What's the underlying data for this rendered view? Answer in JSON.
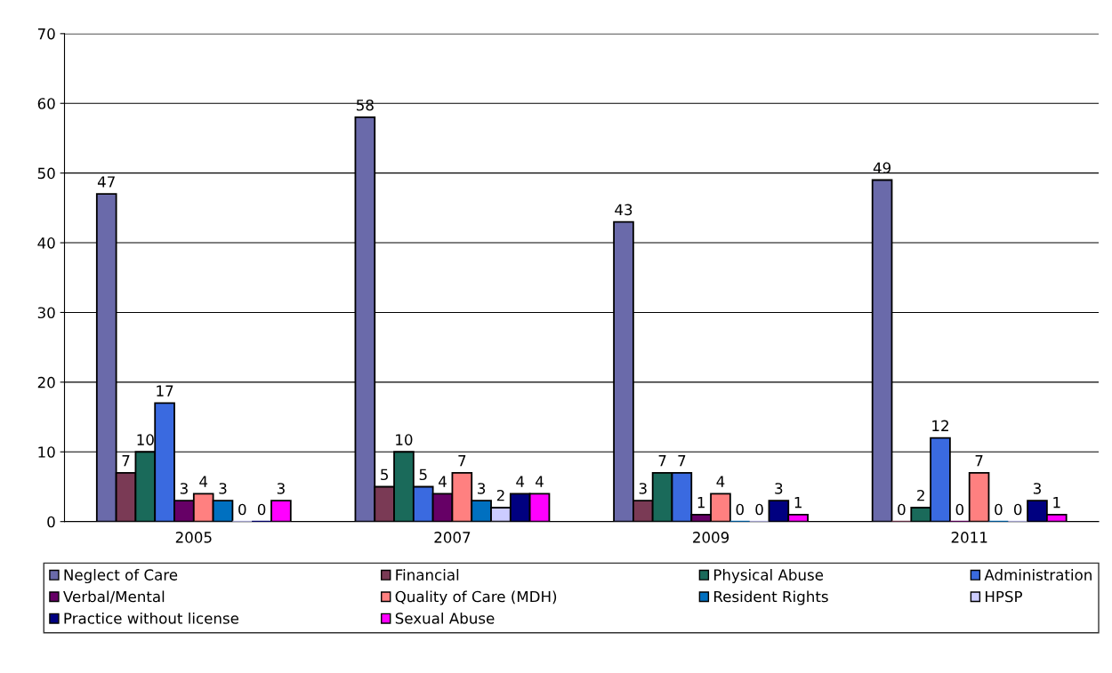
{
  "chart_data": {
    "type": "bar",
    "categories": [
      "2005",
      "2007",
      "2009",
      "2011"
    ],
    "series": [
      {
        "name": "Neglect of Care",
        "color": "#6a6aaa",
        "values": [
          47,
          58,
          43,
          49
        ]
      },
      {
        "name": "Financial",
        "color": "#7a3a55",
        "values": [
          7,
          5,
          3,
          0
        ]
      },
      {
        "name": "Physical Abuse",
        "color": "#1a6a5a",
        "values": [
          10,
          10,
          7,
          2
        ]
      },
      {
        "name": "Administration",
        "color": "#3a6ae0",
        "values": [
          17,
          5,
          7,
          12
        ]
      },
      {
        "name": "Verbal/Mental",
        "color": "#660066",
        "values": [
          3,
          4,
          1,
          0
        ]
      },
      {
        "name": "Quality of Care (MDH)",
        "color": "#ff8080",
        "values": [
          4,
          7,
          4,
          7
        ]
      },
      {
        "name": "Resident Rights",
        "color": "#0070c0",
        "values": [
          3,
          3,
          0,
          0
        ]
      },
      {
        "name": "HPSP",
        "color": "#ccccff",
        "values": [
          0,
          2,
          0,
          0
        ]
      },
      {
        "name": "Practice without license",
        "color": "#000080",
        "values": [
          0,
          4,
          3,
          3
        ]
      },
      {
        "name": "Sexual Abuse",
        "color": "#ff00ff",
        "values": [
          3,
          4,
          1,
          1
        ]
      }
    ],
    "ylim": [
      0,
      70
    ],
    "yticks": [
      0,
      10,
      20,
      30,
      40,
      50,
      60,
      70
    ],
    "grid": "y",
    "legend": "bottom",
    "data_labels": true
  }
}
